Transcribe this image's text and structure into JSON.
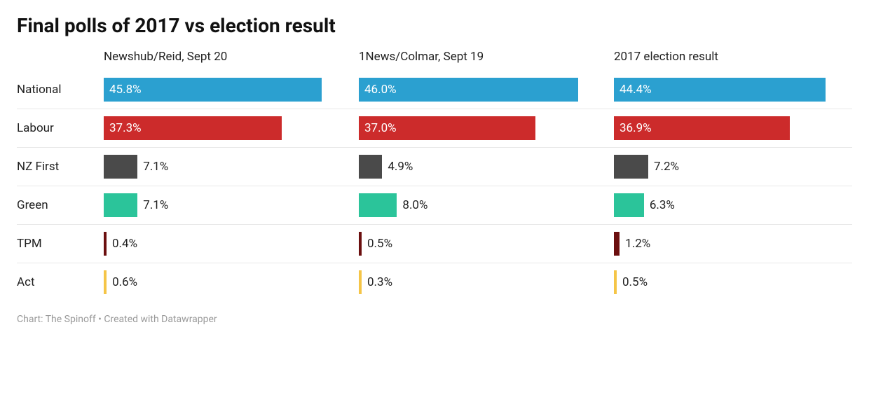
{
  "title": "Final polls of 2017 vs election result",
  "footer": "Chart: The Spinoff • Created with Datawrapper",
  "chart": {
    "type": "bar",
    "max_value": 50,
    "background_color": "#ffffff",
    "separator_color": "#e8e8e8",
    "title_fontsize": 28,
    "label_fontsize": 17,
    "footer_fontsize": 14,
    "footer_color": "#9a9a9a",
    "columns": [
      {
        "label": "Newshub/Reid, Sept 20"
      },
      {
        "label": "1News/Colmar, Sept 19"
      },
      {
        "label": "2017 election result"
      }
    ],
    "rows": [
      {
        "label": "National",
        "color": "#2ba0d0",
        "values": [
          45.8,
          46.0,
          44.4
        ],
        "inside": true
      },
      {
        "label": "Labour",
        "color": "#cc2b2b",
        "values": [
          37.3,
          37.0,
          36.9
        ],
        "inside": true
      },
      {
        "label": "NZ First",
        "color": "#4a4a4a",
        "values": [
          7.1,
          4.9,
          7.2
        ],
        "inside": false
      },
      {
        "label": "Green",
        "color": "#2bc49a",
        "values": [
          7.1,
          8.0,
          6.3
        ],
        "inside": false
      },
      {
        "label": "TPM",
        "color": "#6b0f0f",
        "values": [
          0.4,
          0.5,
          1.2
        ],
        "inside": false
      },
      {
        "label": "Act",
        "color": "#f5c547",
        "values": [
          0.6,
          0.3,
          0.5
        ],
        "inside": false
      }
    ]
  }
}
